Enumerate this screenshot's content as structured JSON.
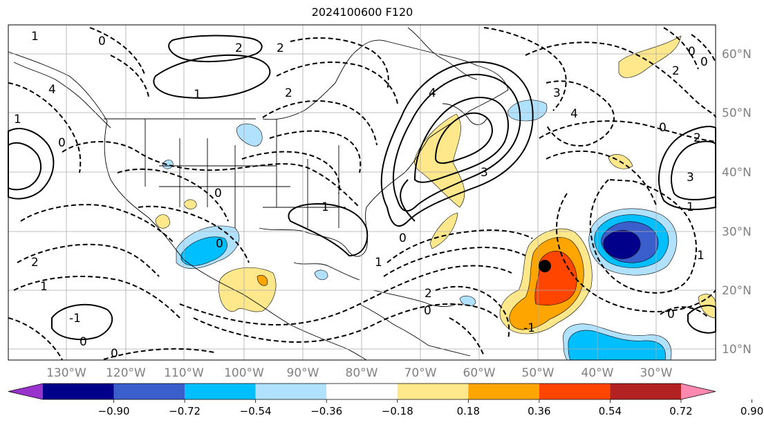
{
  "title": "2024100600 F120",
  "lon_labels": [
    "130°W",
    "120°W",
    "110°W",
    "100°W",
    "90°W",
    "80°W",
    "70°W",
    "60°W",
    "50°W",
    "40°W",
    "30°W"
  ],
  "lat_labels": [
    "60°N",
    "50°N",
    "40°N",
    "30°N",
    "20°N",
    "10°N"
  ],
  "contour_labels": [
    "1",
    "0",
    "2",
    "3",
    "4",
    "-1"
  ],
  "colorbar": {
    "ticks": [
      "−0.90",
      "−0.72",
      "−0.54",
      "−0.36",
      "−0.18",
      "0.18",
      "0.36",
      "0.54",
      "0.72",
      "0.90"
    ],
    "colors": [
      "#9932cc",
      "#00008b",
      "#3a5fcd",
      "#00bfff",
      "#b0e2ff",
      "#ffffff",
      "#fee88b",
      "#ffa500",
      "#ff4500",
      "#b22222",
      "#ff88b0"
    ],
    "extend": "both"
  },
  "colors": {
    "axis_label": "#808080",
    "grid": "#aaaaaa",
    "marker": "#000000"
  },
  "storm_marker": "filled-circle"
}
